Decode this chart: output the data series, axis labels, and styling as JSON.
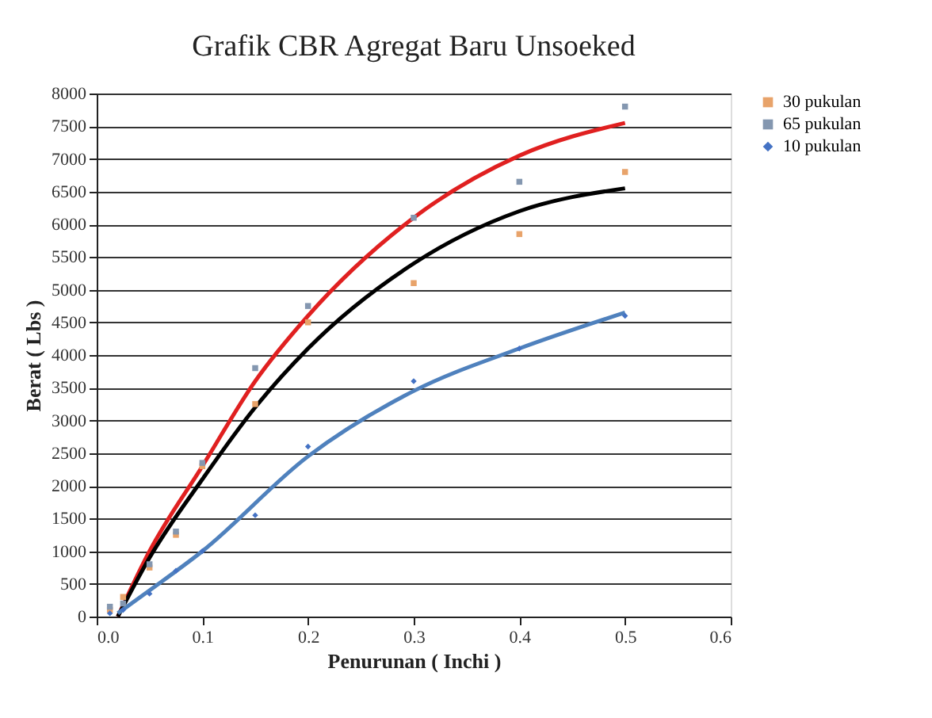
{
  "chart_data": {
    "type": "scatter",
    "title": "Grafik CBR Agregat Baru Unsoeked",
    "xlabel": "Penurunan ( Inchi )",
    "ylabel": "Berat ( Lbs )",
    "xlim": [
      0,
      0.6
    ],
    "xticks": [
      {
        "value": 0,
        "label": "0.0"
      },
      0.1,
      0.2,
      0.3,
      0.4,
      0.5,
      0.6
    ],
    "ylim": [
      0,
      8000
    ],
    "yticks": [
      0,
      500,
      1000,
      1500,
      2000,
      2500,
      3000,
      3500,
      4000,
      4500,
      5000,
      5500,
      6000,
      6500,
      7000,
      7500,
      8000
    ],
    "grid": "y",
    "legend": "right",
    "series": [
      {
        "name": "30 pukulan",
        "color": "#e8a36a",
        "marker": "square",
        "x": [
          0.0125,
          0.025,
          0.05,
          0.075,
          0.1,
          0.15,
          0.2,
          0.3,
          0.4,
          0.5
        ],
        "values": [
          100,
          300,
          750,
          1250,
          2300,
          3250,
          4500,
          5100,
          5850,
          6800
        ]
      },
      {
        "name": "65 pukulan",
        "color": "#8497b0",
        "marker": "square",
        "x": [
          0.0125,
          0.025,
          0.05,
          0.075,
          0.1,
          0.15,
          0.2,
          0.3,
          0.4,
          0.5
        ],
        "values": [
          150,
          200,
          800,
          1300,
          2350,
          3800,
          4750,
          6100,
          6650,
          7800
        ]
      },
      {
        "name": "10 pukulan",
        "color": "#4472c4",
        "marker": "diamond",
        "x": [
          0.0125,
          0.025,
          0.05,
          0.075,
          0.1,
          0.15,
          0.2,
          0.3,
          0.4,
          0.5
        ],
        "values": [
          50,
          100,
          350,
          700,
          1000,
          1550,
          2600,
          3600,
          4100,
          4600
        ]
      },
      {
        "type": "line",
        "color": "#e02020",
        "x": [
          0.02,
          0.05,
          0.1,
          0.15,
          0.2,
          0.3,
          0.4,
          0.5
        ],
        "values": [
          0,
          1000,
          2300,
          3600,
          4600,
          6100,
          7050,
          7550
        ]
      },
      {
        "type": "line",
        "color": "#000000",
        "x": [
          0.02,
          0.05,
          0.1,
          0.15,
          0.2,
          0.3,
          0.4,
          0.5
        ],
        "values": [
          0,
          900,
          2100,
          3200,
          4100,
          5400,
          6200,
          6550
        ]
      },
      {
        "type": "line",
        "color": "#4f81bd",
        "x": [
          0.02,
          0.05,
          0.1,
          0.2,
          0.3,
          0.4,
          0.5
        ],
        "values": [
          50,
          400,
          1000,
          2450,
          3450,
          4100,
          4650
        ]
      }
    ]
  }
}
